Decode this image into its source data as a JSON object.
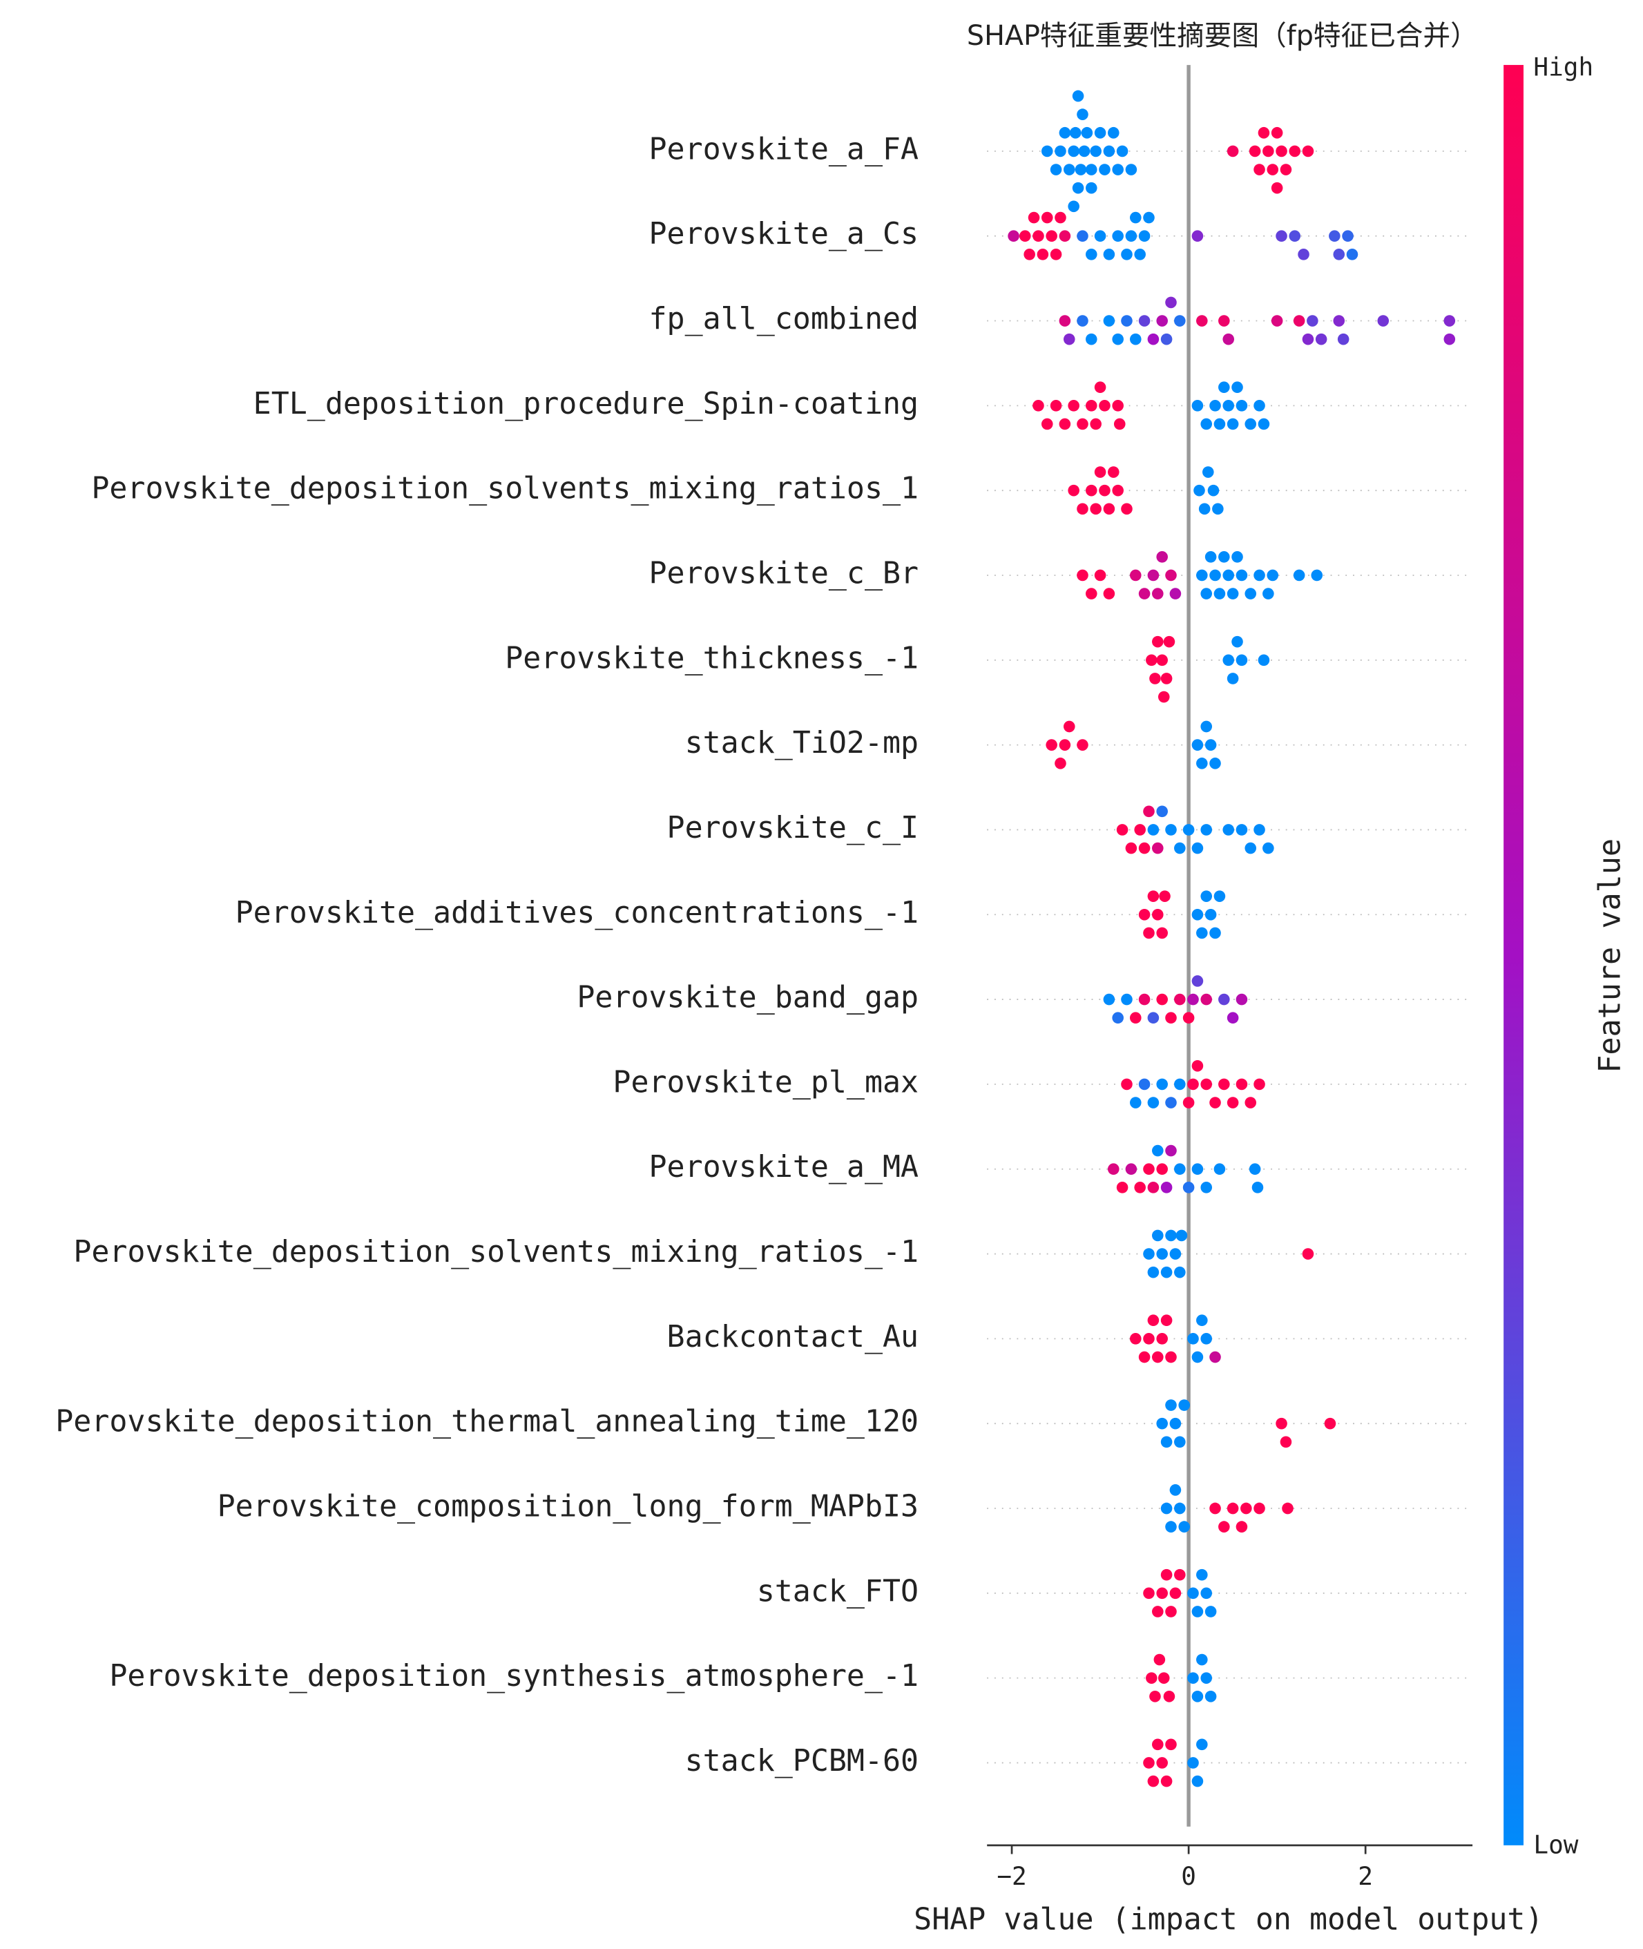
{
  "chart_data": {
    "type": "beeswarm",
    "title": "SHAP特征重要性摘要图（fp特征已合并）",
    "xlabel": "SHAP value (impact on model output)",
    "xlim": [
      -2.28,
      3.21
    ],
    "xticks": [
      {
        "value": -2,
        "label": "−2"
      },
      0,
      2
    ],
    "colorbar": {
      "label": "Feature value",
      "high": "High",
      "low": "Low",
      "colors": [
        "#008bfb",
        "#a410c4",
        "#ff0052"
      ]
    },
    "series": [
      {
        "name": "Perovskite_a_FA",
        "values": [
          -1.6,
          -1.5,
          -1.45,
          -1.4,
          -1.35,
          -1.3,
          -1.28,
          -1.25,
          -1.22,
          -1.2,
          -1.18,
          -1.15,
          -1.1,
          -1.05,
          -1.0,
          -0.95,
          -0.9,
          -0.85,
          -0.8,
          -0.75,
          -0.65,
          -1.3,
          -1.25,
          -1.1,
          0.5,
          0.75,
          0.8,
          0.85,
          0.9,
          0.95,
          1.0,
          1.0,
          1.05,
          1.1,
          1.2,
          1.35
        ],
        "feature_values": [
          0,
          0,
          0,
          0,
          0,
          0,
          0,
          0,
          0,
          0,
          0,
          0,
          0,
          0,
          0,
          0,
          0,
          0,
          0,
          0,
          0,
          0,
          0,
          0,
          0.95,
          1,
          1,
          1,
          1,
          1,
          1,
          1,
          1,
          1,
          1,
          1
        ]
      },
      {
        "name": "Perovskite_a_Cs",
        "values": [
          -1.98,
          -1.85,
          -1.8,
          -1.75,
          -1.7,
          -1.65,
          -1.6,
          -1.55,
          -1.5,
          -1.45,
          -1.4,
          -1.2,
          -1.1,
          -1.0,
          -0.9,
          -0.8,
          -0.7,
          -0.65,
          -0.6,
          -0.55,
          -0.5,
          -0.45,
          0.1,
          1.05,
          1.2,
          1.3,
          1.65,
          1.7,
          1.8,
          1.85
        ],
        "feature_values": [
          0.7,
          1,
          1,
          1,
          1,
          1,
          1,
          1,
          1,
          1,
          0.9,
          0.1,
          0,
          0,
          0,
          0,
          0,
          0,
          0,
          0,
          0,
          0,
          0.4,
          0.3,
          0.25,
          0.3,
          0.2,
          0.25,
          0.15,
          0.1
        ]
      },
      {
        "name": "fp_all_combined",
        "values": [
          -1.4,
          -1.35,
          -1.2,
          -1.1,
          -0.9,
          -0.8,
          -0.7,
          -0.6,
          -0.5,
          -0.4,
          -0.3,
          -0.25,
          -0.2,
          -0.1,
          0.15,
          0.4,
          0.45,
          1.0,
          1.25,
          1.35,
          1.4,
          1.5,
          1.7,
          1.75,
          2.2,
          2.95,
          2.95
        ],
        "feature_values": [
          0.8,
          0.4,
          0.1,
          0,
          0,
          0,
          0.1,
          0,
          0.3,
          0.5,
          0.6,
          0.2,
          0.4,
          0.1,
          0.9,
          0.9,
          0.7,
          0.8,
          0.9,
          0.4,
          0.3,
          0.35,
          0.4,
          0.3,
          0.35,
          0.4,
          0.45
        ]
      },
      {
        "name": "ETL_deposition_procedure_Spin-coating",
        "values": [
          -1.7,
          -1.6,
          -1.5,
          -1.4,
          -1.3,
          -1.2,
          -1.1,
          -1.05,
          -1.0,
          -0.95,
          -0.8,
          -0.78,
          0.1,
          0.2,
          0.3,
          0.35,
          0.4,
          0.45,
          0.5,
          0.55,
          0.6,
          0.7,
          0.8,
          0.85
        ],
        "feature_values": [
          1,
          1,
          1,
          1,
          1,
          1,
          1,
          1,
          1,
          1,
          1,
          1,
          0,
          0,
          0,
          0,
          0,
          0,
          0,
          0,
          0,
          0,
          0,
          0
        ]
      },
      {
        "name": "Perovskite_deposition_solvents_mixing_ratios_1",
        "values": [
          -1.3,
          -1.2,
          -1.1,
          -1.05,
          -1.0,
          -0.95,
          -0.9,
          -0.85,
          -0.8,
          -0.7,
          0.12,
          0.18,
          0.22,
          0.28,
          0.33
        ],
        "feature_values": [
          1,
          1,
          1,
          1,
          1,
          1,
          1,
          1,
          1,
          1,
          0,
          0,
          0,
          0,
          0
        ]
      },
      {
        "name": "Perovskite_c_Br",
        "values": [
          -1.2,
          -1.1,
          -1.0,
          -0.9,
          -0.6,
          -0.5,
          -0.4,
          -0.35,
          -0.3,
          -0.2,
          -0.15,
          0.15,
          0.2,
          0.25,
          0.3,
          0.35,
          0.4,
          0.45,
          0.5,
          0.55,
          0.6,
          0.7,
          0.8,
          0.9,
          0.95,
          1.25,
          1.45
        ],
        "feature_values": [
          1,
          1,
          1,
          1,
          0.8,
          0.75,
          0.7,
          0.75,
          0.7,
          0.8,
          0.6,
          0,
          0,
          0,
          0,
          0,
          0,
          0,
          0,
          0,
          0,
          0,
          0,
          0,
          0,
          0,
          0
        ]
      },
      {
        "name": "Perovskite_thickness_-1",
        "values": [
          -0.42,
          -0.38,
          -0.35,
          -0.3,
          -0.28,
          -0.25,
          -0.22,
          0.45,
          0.5,
          0.55,
          0.6,
          0.85
        ],
        "feature_values": [
          1,
          1,
          1,
          1,
          1,
          1,
          1,
          0,
          0,
          0,
          0,
          0
        ]
      },
      {
        "name": "stack_TiO2-mp",
        "values": [
          -1.55,
          -1.45,
          -1.4,
          -1.35,
          -1.2,
          0.1,
          0.15,
          0.2,
          0.25,
          0.3
        ],
        "feature_values": [
          1,
          1,
          1,
          1,
          1,
          0,
          0,
          0,
          0,
          0
        ]
      },
      {
        "name": "Perovskite_c_I",
        "values": [
          -0.75,
          -0.65,
          -0.55,
          -0.5,
          -0.45,
          -0.4,
          -0.35,
          -0.3,
          -0.2,
          -0.1,
          0,
          0.1,
          0.2,
          0.45,
          0.6,
          0.7,
          0.8,
          0.9
        ],
        "feature_values": [
          1,
          1,
          1,
          1,
          0.9,
          0,
          0.8,
          0.1,
          0,
          0,
          0,
          0,
          0,
          0,
          0,
          0,
          0,
          0
        ]
      },
      {
        "name": "Perovskite_additives_concentrations_-1",
        "values": [
          -0.5,
          -0.45,
          -0.4,
          -0.35,
          -0.3,
          -0.27,
          0.1,
          0.15,
          0.2,
          0.25,
          0.3,
          0.35
        ],
        "feature_values": [
          1,
          1,
          1,
          1,
          1,
          1,
          0,
          0,
          0,
          0,
          0,
          0
        ]
      },
      {
        "name": "Perovskite_band_gap",
        "values": [
          -0.9,
          -0.8,
          -0.7,
          -0.6,
          -0.5,
          -0.4,
          -0.3,
          -0.2,
          -0.1,
          0,
          0.05,
          0.1,
          0.2,
          0.4,
          0.5,
          0.6
        ],
        "feature_values": [
          0,
          0.1,
          0,
          1,
          0.9,
          0.2,
          1,
          1,
          0.9,
          1,
          0.6,
          0.3,
          0.8,
          0.3,
          0.5,
          0.6
        ]
      },
      {
        "name": "Perovskite_pl_max",
        "values": [
          -0.7,
          -0.6,
          -0.5,
          -0.4,
          -0.3,
          -0.2,
          -0.1,
          0,
          0.05,
          0.1,
          0.2,
          0.3,
          0.4,
          0.5,
          0.6,
          0.7,
          0.8
        ],
        "feature_values": [
          1,
          0,
          0.1,
          0,
          0,
          0.1,
          0,
          1,
          1,
          1,
          1,
          1,
          1,
          1,
          1,
          1,
          1
        ]
      },
      {
        "name": "Perovskite_a_MA",
        "values": [
          -0.85,
          -0.75,
          -0.65,
          -0.55,
          -0.45,
          -0.4,
          -0.35,
          -0.3,
          -0.25,
          -0.2,
          -0.1,
          0,
          0.1,
          0.2,
          0.35,
          0.75,
          0.78
        ],
        "feature_values": [
          0.8,
          1,
          0.7,
          1,
          1,
          0.9,
          0,
          1,
          0.5,
          0.6,
          0,
          0.1,
          0,
          0,
          0,
          0,
          0
        ]
      },
      {
        "name": "Perovskite_deposition_solvents_mixing_ratios_-1",
        "values": [
          -0.45,
          -0.4,
          -0.35,
          -0.3,
          -0.25,
          -0.2,
          -0.15,
          -0.1,
          -0.08,
          1.35
        ],
        "feature_values": [
          0,
          0,
          0,
          0,
          0,
          0,
          0,
          0,
          0,
          1
        ]
      },
      {
        "name": "Backcontact_Au",
        "values": [
          -0.6,
          -0.5,
          -0.45,
          -0.4,
          -0.35,
          -0.3,
          -0.25,
          -0.2,
          0.05,
          0.1,
          0.15,
          0.2,
          0.3
        ],
        "feature_values": [
          1,
          1,
          1,
          1,
          1,
          1,
          1,
          1,
          0,
          0,
          0,
          0,
          0.7
        ]
      },
      {
        "name": "Perovskite_deposition_thermal_annealing_time_120",
        "values": [
          -0.3,
          -0.25,
          -0.2,
          -0.15,
          -0.1,
          -0.05,
          1.05,
          1.1,
          1.6
        ],
        "feature_values": [
          0,
          0,
          0,
          0,
          0,
          0,
          1,
          1,
          1
        ]
      },
      {
        "name": "Perovskite_composition_long_form_MAPbI3",
        "values": [
          -0.25,
          -0.2,
          -0.15,
          -0.1,
          -0.05,
          0.3,
          0.4,
          0.5,
          0.6,
          0.65,
          0.8,
          1.12
        ],
        "feature_values": [
          0,
          0,
          0,
          0,
          0,
          1,
          1,
          1,
          1,
          1,
          1,
          1
        ]
      },
      {
        "name": "stack_FTO",
        "values": [
          -0.45,
          -0.35,
          -0.3,
          -0.25,
          -0.2,
          -0.15,
          -0.1,
          0.05,
          0.1,
          0.15,
          0.2,
          0.25
        ],
        "feature_values": [
          1,
          1,
          1,
          1,
          1,
          1,
          1,
          0,
          0,
          0,
          0,
          0
        ]
      },
      {
        "name": "Perovskite_deposition_synthesis_atmosphere_-1",
        "values": [
          -0.42,
          -0.38,
          -0.33,
          -0.28,
          -0.22,
          0.05,
          0.1,
          0.15,
          0.2,
          0.25
        ],
        "feature_values": [
          1,
          1,
          1,
          1,
          1,
          0,
          0,
          0,
          0,
          0
        ]
      },
      {
        "name": "stack_PCBM-60",
        "values": [
          -0.45,
          -0.4,
          -0.35,
          -0.3,
          -0.25,
          -0.2,
          0.05,
          0.1,
          0.15
        ],
        "feature_values": [
          1,
          1,
          1,
          1,
          1,
          1,
          0,
          0,
          0
        ]
      }
    ]
  }
}
